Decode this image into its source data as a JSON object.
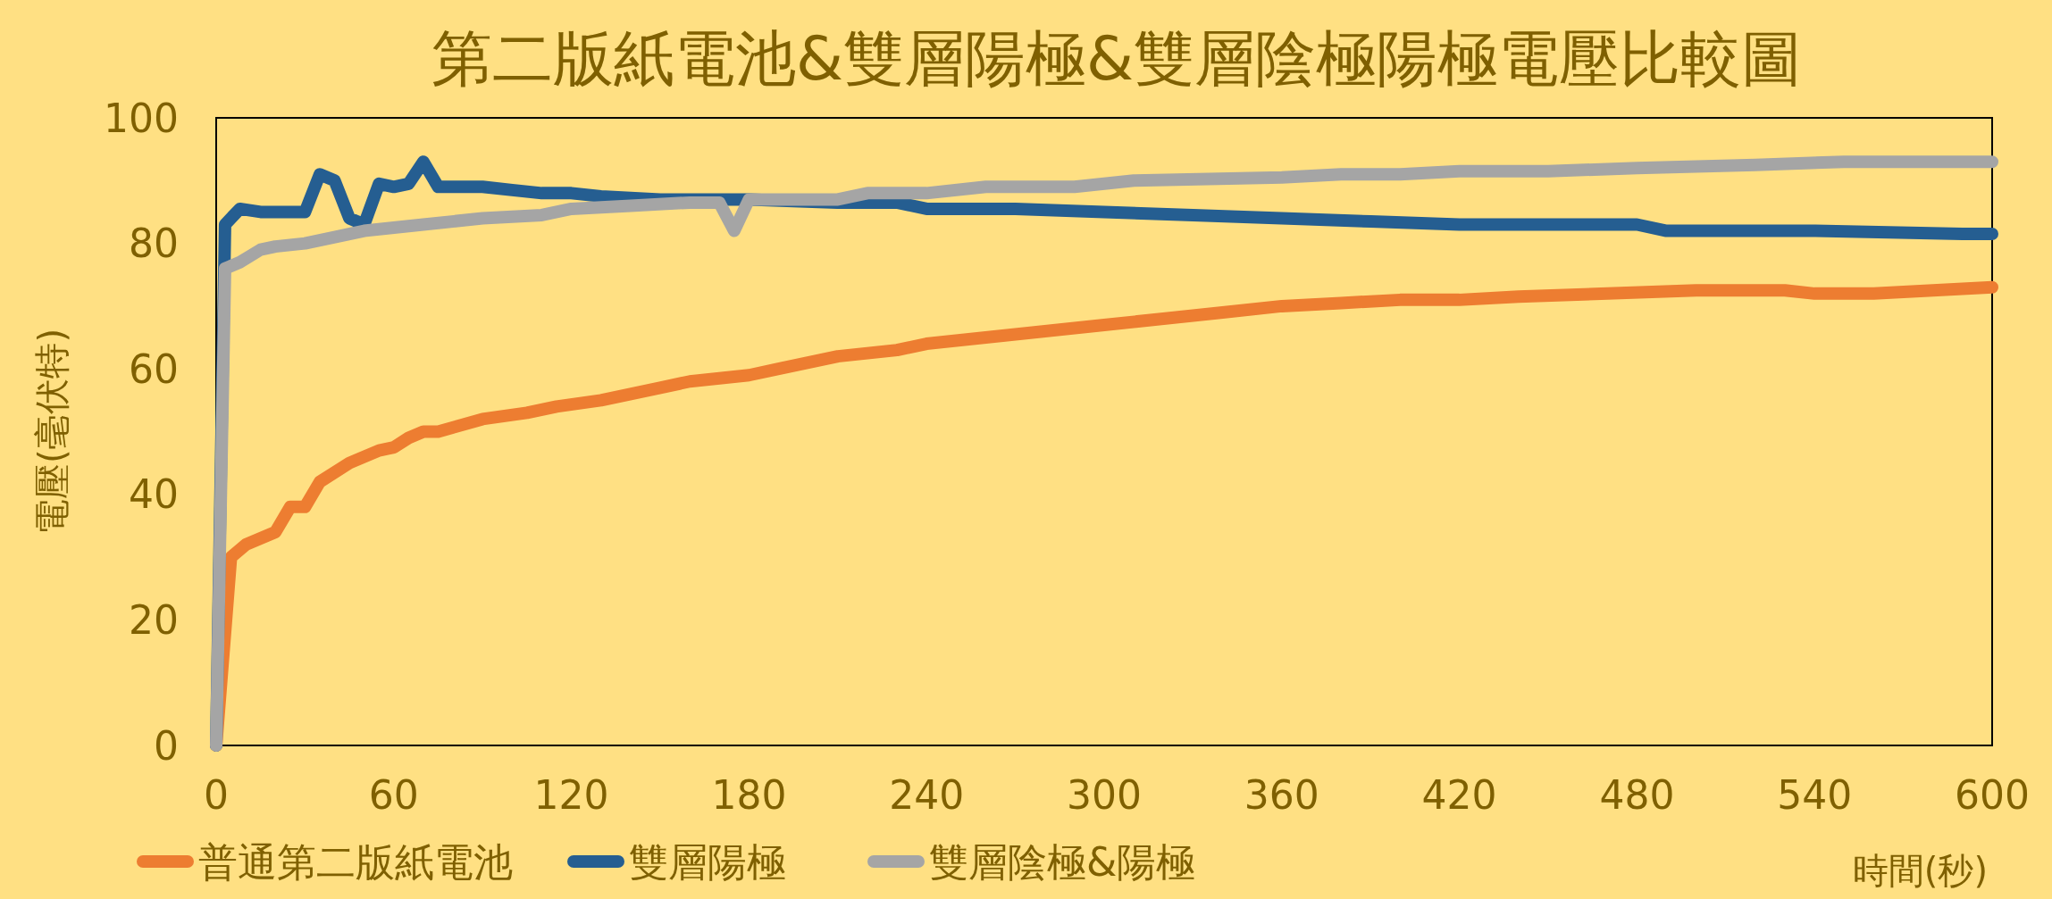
{
  "chart_data": {
    "type": "line",
    "title": "第二版紙電池&雙層陽極&雙層陰極陽極電壓比較圖",
    "xlabel": "時間(秒)",
    "ylabel": "電壓(毫伏特)",
    "xlim": [
      0,
      600
    ],
    "ylim": [
      0,
      100
    ],
    "xticks": [
      0,
      60,
      120,
      180,
      240,
      300,
      360,
      420,
      480,
      540,
      600
    ],
    "yticks": [
      0,
      20,
      40,
      60,
      80,
      100
    ],
    "grid": false,
    "legend": "bottom",
    "series": [
      {
        "name": "普通第二版紙電池",
        "color": "#ed7d31",
        "x": [
          0,
          5,
          10,
          20,
          25,
          30,
          35,
          45,
          55,
          60,
          65,
          70,
          75,
          90,
          105,
          115,
          130,
          140,
          150,
          160,
          170,
          180,
          190,
          200,
          210,
          230,
          240,
          260,
          280,
          300,
          320,
          340,
          360,
          380,
          400,
          420,
          440,
          470,
          500,
          530,
          540,
          560,
          580,
          600
        ],
        "values": [
          0,
          30,
          32,
          34,
          38,
          38,
          42,
          45,
          47,
          47.5,
          49,
          50,
          50,
          52,
          53,
          54,
          55,
          56,
          57,
          58,
          58.5,
          59,
          60,
          61,
          62,
          63,
          64,
          65,
          66,
          67,
          68,
          69,
          70,
          70.5,
          71,
          71,
          71.5,
          72,
          72.5,
          72.5,
          72,
          72,
          72.5,
          73
        ]
      },
      {
        "name": "雙層陽極",
        "color": "#255e91",
        "x": [
          0,
          3,
          8,
          15,
          25,
          30,
          35,
          40,
          45,
          50,
          55,
          60,
          65,
          70,
          75,
          80,
          90,
          100,
          110,
          120,
          130,
          150,
          180,
          210,
          230,
          240,
          270,
          300,
          330,
          360,
          390,
          420,
          480,
          490,
          540,
          590,
          600
        ],
        "values": [
          0,
          83,
          85.5,
          85,
          85,
          85,
          91,
          90,
          84,
          83,
          89.5,
          89,
          89.5,
          93,
          89,
          89,
          89,
          88.5,
          88,
          88,
          87.5,
          87,
          87,
          86.5,
          86.5,
          85.5,
          85.5,
          85,
          84.5,
          84,
          83.5,
          83,
          83,
          82,
          82,
          81.5,
          81.5
        ]
      },
      {
        "name": "雙層陰極&陽極",
        "color": "#a5a5a5",
        "x": [
          0,
          3,
          8,
          15,
          20,
          30,
          40,
          50,
          60,
          70,
          90,
          110,
          120,
          140,
          160,
          170,
          175,
          180,
          210,
          220,
          240,
          260,
          290,
          300,
          310,
          360,
          380,
          400,
          420,
          450,
          480,
          520,
          550,
          600
        ],
        "values": [
          0,
          76,
          77,
          79,
          79.5,
          80,
          81,
          82,
          82.5,
          83,
          84,
          84.5,
          85.5,
          86,
          86.5,
          86.5,
          82,
          87,
          87,
          88,
          88,
          89,
          89,
          89.5,
          90,
          90.5,
          91,
          91,
          91.5,
          91.5,
          92,
          92.5,
          93,
          93
        ]
      }
    ]
  }
}
